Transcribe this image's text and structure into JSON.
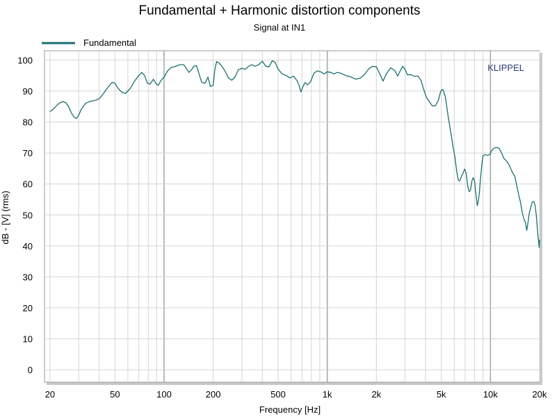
{
  "chart_data": {
    "type": "line",
    "title": "Fundamental + Harmonic distortion components",
    "subtitle": "Signal at IN1",
    "xlabel": "Frequency [Hz]",
    "ylabel": "dB - [V] (rms)",
    "xscale": "log",
    "xlim": [
      18.5,
      20000
    ],
    "ylim": [
      -4,
      103
    ],
    "xticks": [
      {
        "value": 20,
        "label": "20"
      },
      {
        "value": 50,
        "label": "50"
      },
      {
        "value": 100,
        "label": "100"
      },
      {
        "value": 200,
        "label": "200"
      },
      {
        "value": 500,
        "label": "500"
      },
      {
        "value": 1000,
        "label": "1k"
      },
      {
        "value": 2000,
        "label": "2k"
      },
      {
        "value": 5000,
        "label": "5k"
      },
      {
        "value": 10000,
        "label": "10k"
      },
      {
        "value": 20000,
        "label": "20k"
      }
    ],
    "yticks": [
      0,
      10,
      20,
      30,
      40,
      50,
      60,
      70,
      80,
      90,
      100
    ],
    "grid": true,
    "legend_position": "top-left",
    "watermark": "KLIPPEL",
    "series": [
      {
        "name": "Fundamental",
        "color": "#1b6e6e",
        "points": [
          [
            20,
            83.3
          ],
          [
            21,
            84.2
          ],
          [
            22,
            85.4
          ],
          [
            23,
            86.2
          ],
          [
            24,
            86.6
          ],
          [
            25,
            86.2
          ],
          [
            26,
            85.0
          ],
          [
            27,
            83.0
          ],
          [
            28,
            81.6
          ],
          [
            29,
            81.1
          ],
          [
            30,
            82.2
          ],
          [
            31,
            84.0
          ],
          [
            33,
            86.0
          ],
          [
            35,
            86.6
          ],
          [
            38,
            87.0
          ],
          [
            40,
            87.5
          ],
          [
            42,
            88.8
          ],
          [
            45,
            91.0
          ],
          [
            48,
            92.8
          ],
          [
            50,
            92.5
          ],
          [
            52,
            91.0
          ],
          [
            55,
            89.6
          ],
          [
            58,
            89.2
          ],
          [
            62,
            90.8
          ],
          [
            66,
            93.2
          ],
          [
            70,
            95.0
          ],
          [
            73,
            96.0
          ],
          [
            76,
            95.0
          ],
          [
            79,
            92.5
          ],
          [
            82,
            92.2
          ],
          [
            86,
            93.8
          ],
          [
            89,
            92.5
          ],
          [
            92,
            91.8
          ],
          [
            96,
            93.5
          ],
          [
            100,
            94.5
          ],
          [
            105,
            96.5
          ],
          [
            110,
            97.5
          ],
          [
            118,
            98.0
          ],
          [
            125,
            98.5
          ],
          [
            132,
            98.5
          ],
          [
            138,
            97.0
          ],
          [
            142,
            96.0
          ],
          [
            147,
            96.8
          ],
          [
            152,
            98.0
          ],
          [
            158,
            98.2
          ],
          [
            165,
            95.0
          ],
          [
            170,
            92.8
          ],
          [
            178,
            92.5
          ],
          [
            186,
            94.5
          ],
          [
            192,
            91.5
          ],
          [
            200,
            91.8
          ],
          [
            205,
            97.0
          ],
          [
            210,
            99.5
          ],
          [
            218,
            99.0
          ],
          [
            226,
            98.0
          ],
          [
            236,
            96.5
          ],
          [
            248,
            94.2
          ],
          [
            260,
            93.5
          ],
          [
            272,
            94.5
          ],
          [
            285,
            96.8
          ],
          [
            300,
            97.3
          ],
          [
            315,
            97.0
          ],
          [
            330,
            98.0
          ],
          [
            345,
            98.5
          ],
          [
            360,
            98.0
          ],
          [
            380,
            98.5
          ],
          [
            400,
            99.6
          ],
          [
            420,
            98.0
          ],
          [
            440,
            97.8
          ],
          [
            460,
            99.8
          ],
          [
            480,
            99.2
          ],
          [
            500,
            97.0
          ],
          [
            530,
            95.5
          ],
          [
            560,
            95.0
          ],
          [
            590,
            94.2
          ],
          [
            620,
            94.8
          ],
          [
            650,
            93.5
          ],
          [
            670,
            92.0
          ],
          [
            690,
            89.7
          ],
          [
            710,
            91.5
          ],
          [
            730,
            92.7
          ],
          [
            760,
            92.0
          ],
          [
            790,
            93.0
          ],
          [
            830,
            95.8
          ],
          [
            870,
            96.5
          ],
          [
            910,
            96.2
          ],
          [
            960,
            95.5
          ],
          [
            1000,
            96.2
          ],
          [
            1050,
            96.0
          ],
          [
            1100,
            95.5
          ],
          [
            1150,
            96.0
          ],
          [
            1200,
            95.8
          ],
          [
            1300,
            95.0
          ],
          [
            1400,
            94.5
          ],
          [
            1500,
            93.8
          ],
          [
            1600,
            94.2
          ],
          [
            1700,
            95.5
          ],
          [
            1800,
            97.2
          ],
          [
            1900,
            98.0
          ],
          [
            2000,
            97.8
          ],
          [
            2100,
            95.5
          ],
          [
            2200,
            93.2
          ],
          [
            2300,
            95.5
          ],
          [
            2450,
            97.5
          ],
          [
            2600,
            96.5
          ],
          [
            2700,
            94.8
          ],
          [
            2800,
            96.5
          ],
          [
            2900,
            98.0
          ],
          [
            3000,
            97.0
          ],
          [
            3100,
            95.2
          ],
          [
            3250,
            95.3
          ],
          [
            3400,
            94.8
          ],
          [
            3600,
            94.8
          ],
          [
            3750,
            93.5
          ],
          [
            3900,
            90.5
          ],
          [
            4050,
            88.0
          ],
          [
            4200,
            86.8
          ],
          [
            4400,
            85.2
          ],
          [
            4600,
            85.2
          ],
          [
            4800,
            87.0
          ],
          [
            4950,
            89.8
          ],
          [
            5050,
            90.5
          ],
          [
            5150,
            90.2
          ],
          [
            5300,
            88.0
          ],
          [
            5500,
            82.0
          ],
          [
            5700,
            77.0
          ],
          [
            5900,
            72.0
          ],
          [
            6050,
            69.0
          ],
          [
            6200,
            64.5
          ],
          [
            6350,
            61.2
          ],
          [
            6500,
            61.0
          ],
          [
            6650,
            62.5
          ],
          [
            6800,
            63.5
          ],
          [
            6950,
            64.8
          ],
          [
            7100,
            63.5
          ],
          [
            7250,
            59.5
          ],
          [
            7400,
            57.5
          ],
          [
            7550,
            58.0
          ],
          [
            7700,
            61.0
          ],
          [
            7850,
            62.0
          ],
          [
            8000,
            61.0
          ],
          [
            8100,
            58.0
          ],
          [
            8200,
            55.5
          ],
          [
            8300,
            53.0
          ],
          [
            8400,
            54.0
          ],
          [
            8550,
            57.0
          ],
          [
            8700,
            62.0
          ],
          [
            8850,
            66.0
          ],
          [
            9000,
            69.0
          ],
          [
            9300,
            69.5
          ],
          [
            9600,
            69.2
          ],
          [
            9900,
            69.5
          ],
          [
            10200,
            70.8
          ],
          [
            10500,
            71.5
          ],
          [
            10900,
            71.8
          ],
          [
            11300,
            71.5
          ],
          [
            11700,
            70.0
          ],
          [
            12100,
            68.2
          ],
          [
            12500,
            67.5
          ],
          [
            12900,
            66.5
          ],
          [
            13300,
            65.0
          ],
          [
            13700,
            63.5
          ],
          [
            14100,
            62.5
          ],
          [
            14500,
            59.5
          ],
          [
            14900,
            56.5
          ],
          [
            15300,
            54.0
          ],
          [
            15700,
            50.5
          ],
          [
            16100,
            48.5
          ],
          [
            16400,
            47.5
          ],
          [
            16700,
            45.0
          ],
          [
            17000,
            47.5
          ],
          [
            17300,
            50.5
          ],
          [
            17700,
            52.5
          ],
          [
            18100,
            54.3
          ],
          [
            18500,
            54.2
          ],
          [
            18800,
            53.0
          ],
          [
            19100,
            50.0
          ],
          [
            19400,
            45.5
          ],
          [
            19700,
            41.5
          ],
          [
            19900,
            39.5
          ],
          [
            20000,
            42.0
          ]
        ]
      }
    ]
  }
}
